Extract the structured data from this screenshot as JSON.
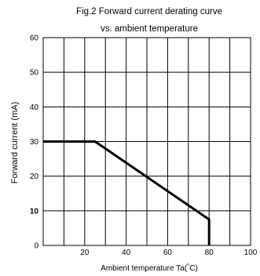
{
  "chart_data": {
    "type": "line",
    "title": "Fig.2  Forward current derating curve",
    "subtitle": "vs. ambient temperature",
    "xlabel": "Ambient temperature Ta(°C)",
    "ylabel": "Forward current (mA)",
    "xlim": [
      0,
      100
    ],
    "ylim": [
      0,
      60
    ],
    "x_ticks": [
      20,
      40,
      60,
      80,
      100
    ],
    "y_ticks": [
      0,
      10,
      20,
      30,
      40,
      50,
      60
    ],
    "bold_y_tick": 10,
    "grid": true,
    "x_grid_step": 10,
    "y_grid_step": 10,
    "series": [
      {
        "x": [
          0,
          25,
          80,
          80
        ],
        "y": [
          30,
          30,
          7.5,
          0
        ]
      }
    ]
  }
}
